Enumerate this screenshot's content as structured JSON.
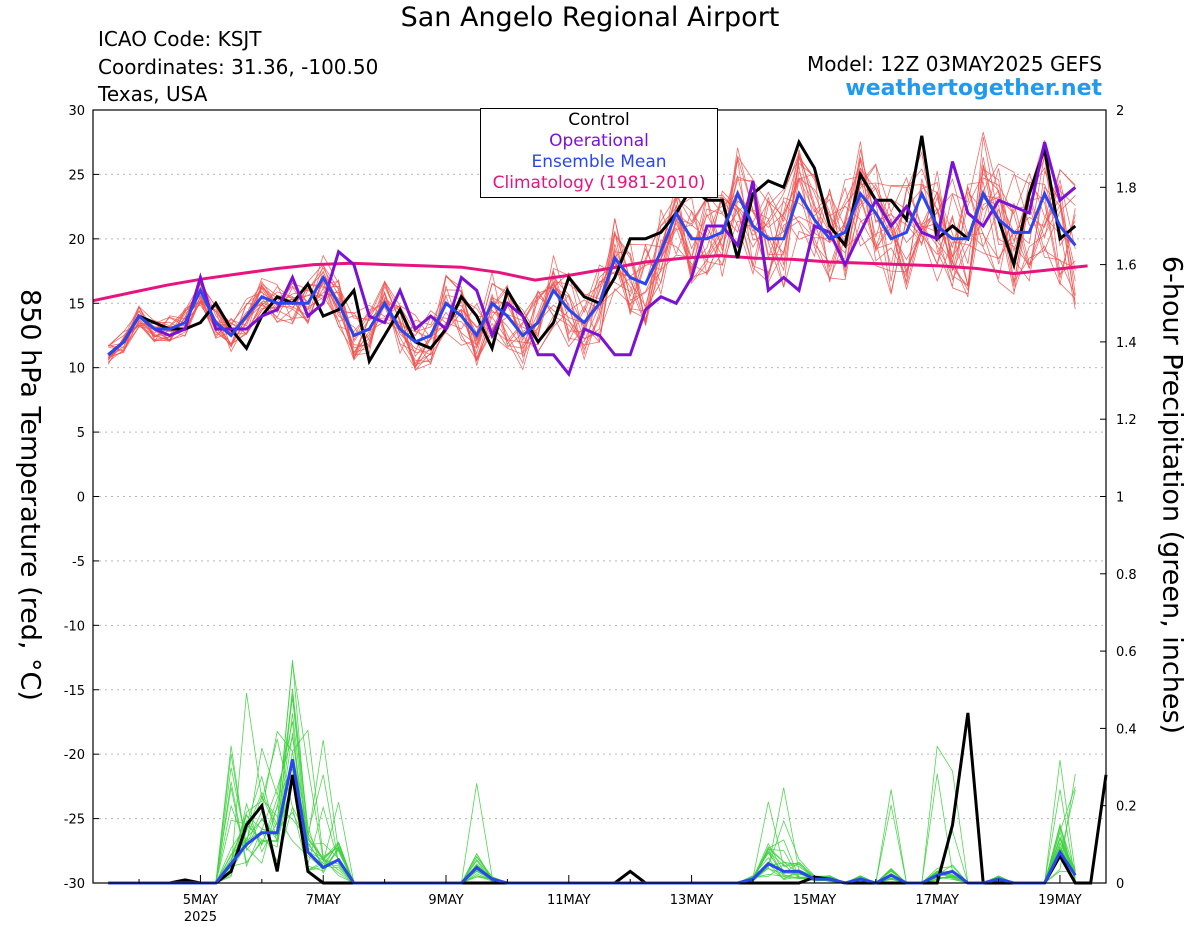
{
  "header": {
    "title": "San Angelo Regional Airport",
    "icao": "ICAO Code: KSJT",
    "coordinates": "Coordinates: 31.36, -100.50",
    "region": "Texas, USA",
    "model": "Model: 12Z 03MAY2025 GEFS",
    "site": "weathertogether.net"
  },
  "colors": {
    "members": "#ef5350",
    "precip_members": "#3fd13f",
    "control": "#000000",
    "operational": "#7a12d6",
    "ensemble_mean": "#2a46f0",
    "climatology": "#e8137f"
  },
  "chart_data": {
    "type": "line",
    "title": "San Angelo Regional Airport",
    "ylabel_left": "850 hPa Temperature (red, °C)",
    "ylabel_right": "6-hour Precipitation (green, inches)",
    "ylim_left": [
      -30,
      30
    ],
    "ylim_right": [
      0,
      2
    ],
    "yticks_left": [
      "30",
      "25",
      "20",
      "15",
      "10",
      "5",
      "0",
      "-5",
      "-10",
      "-15",
      "-20",
      "-25",
      "-30"
    ],
    "yticks_right": [
      "2",
      "1.8",
      "1.6",
      "1.4",
      "1.2",
      "1",
      "0.8",
      "0.6",
      "0.4",
      "0.2",
      "0"
    ],
    "x_unit": "days since 4 MAY 00Z",
    "xlim": [
      -0.75,
      15.75
    ],
    "xticks": [
      {
        "label": "5MAY",
        "sub": "2025",
        "x": 1
      },
      {
        "label": "7MAY",
        "sub": "",
        "x": 3
      },
      {
        "label": "9MAY",
        "sub": "",
        "x": 5
      },
      {
        "label": "11MAY",
        "sub": "",
        "x": 7
      },
      {
        "label": "13MAY",
        "sub": "",
        "x": 9
      },
      {
        "label": "15MAY",
        "sub": "",
        "x": 11
      },
      {
        "label": "17MAY",
        "sub": "",
        "x": 13
      },
      {
        "label": "19MAY",
        "sub": "",
        "x": 15
      }
    ],
    "legend": [
      "Control",
      "Operational",
      "Ensemble Mean",
      "Climatology (1981-2010)"
    ],
    "legend_placement": "top-center",
    "grid": true,
    "members_count": 20,
    "temperature": {
      "control": [
        11,
        12,
        14,
        13.5,
        13,
        13,
        13.5,
        15,
        13,
        11.5,
        14,
        15.5,
        15,
        16.5,
        14,
        14.5,
        16,
        10.5,
        12.5,
        14.5,
        12,
        11.5,
        13,
        15.5,
        14,
        11.5,
        16,
        14,
        12,
        13.5,
        17,
        15.5,
        15,
        17,
        20,
        20,
        20.5,
        22,
        24,
        23,
        23,
        18.5,
        23.5,
        24.5,
        24,
        27.5,
        25.5,
        21,
        19.5,
        25,
        23,
        23,
        21.5,
        28,
        20,
        21,
        20,
        23.5,
        21.5,
        18,
        23.5,
        27,
        20,
        21
      ],
      "operational": [
        11,
        12,
        14,
        13,
        12.5,
        13,
        17,
        13,
        13,
        13,
        14,
        14.5,
        17,
        14,
        15,
        19,
        18,
        14,
        13.5,
        16,
        13,
        14,
        13,
        17,
        16,
        12.5,
        15,
        14,
        11,
        11,
        9.5,
        13,
        12.5,
        11,
        11,
        14.5,
        15.5,
        15,
        17,
        21,
        21,
        19.5,
        24.5,
        16,
        17,
        16,
        21,
        20.5,
        18,
        20.5,
        23,
        21,
        22.5,
        20.5,
        20,
        26,
        22,
        21,
        23,
        22.5,
        22,
        27.5,
        23,
        24
      ],
      "ensemble_mean": [
        11,
        12,
        14,
        13,
        13,
        13.5,
        16,
        13.5,
        12.5,
        14,
        15.5,
        15,
        15,
        15,
        17,
        15,
        12.5,
        13,
        15,
        13,
        12,
        12.5,
        15,
        14,
        12.5,
        15,
        14,
        12.5,
        13.5,
        16,
        14.5,
        13.5,
        15,
        18.5,
        17,
        16.5,
        19,
        22,
        20,
        20,
        20.5,
        23.5,
        21,
        20,
        20,
        23.5,
        21.5,
        20,
        20.5,
        23.5,
        22,
        20,
        20.5,
        23.5,
        21,
        20,
        20,
        23.5,
        21.5,
        20.5,
        20.5,
        23.5,
        21,
        19.5
      ],
      "climatology": [
        15.2,
        15.8,
        16.4,
        16.9,
        17.3,
        17.7,
        18,
        18.1,
        18,
        17.9,
        17.8,
        17.4,
        16.8,
        17.2,
        17.7,
        18.2,
        18.5,
        18.7,
        18.5,
        18.4,
        18.2,
        18.1,
        18,
        17.9,
        17.7,
        17.3,
        17.6,
        17.9
      ]
    },
    "precipitation": {
      "control": [
        0,
        0,
        0,
        0,
        0,
        0.008,
        0,
        0,
        0.03,
        0.15,
        0.2,
        0.03,
        0.28,
        0.03,
        0,
        0,
        0,
        0,
        0,
        0,
        0,
        0,
        0,
        0,
        0,
        0,
        0,
        0,
        0,
        0,
        0,
        0,
        0,
        0,
        0.03,
        0,
        0,
        0,
        0,
        0,
        0,
        0,
        0,
        0,
        0,
        0,
        0.015,
        0.01,
        0,
        0,
        0,
        0,
        0,
        0,
        0,
        0.15,
        0.44,
        0,
        0,
        0,
        0,
        0,
        0.07,
        0,
        0,
        0.28
      ],
      "ensemble_mean": [
        0,
        0,
        0,
        0,
        0,
        0,
        0,
        0,
        0.05,
        0.1,
        0.13,
        0.13,
        0.32,
        0.08,
        0.04,
        0.06,
        0,
        0,
        0,
        0,
        0,
        0,
        0,
        0,
        0.04,
        0.01,
        0,
        0,
        0,
        0,
        0,
        0,
        0,
        0,
        0,
        0,
        0,
        0,
        0,
        0,
        0,
        0,
        0.01,
        0.05,
        0.03,
        0.03,
        0.01,
        0.01,
        0,
        0.01,
        0,
        0.02,
        0,
        0,
        0.02,
        0.03,
        0,
        0,
        0.01,
        0,
        0,
        0,
        0.08,
        0.02
      ]
    }
  }
}
